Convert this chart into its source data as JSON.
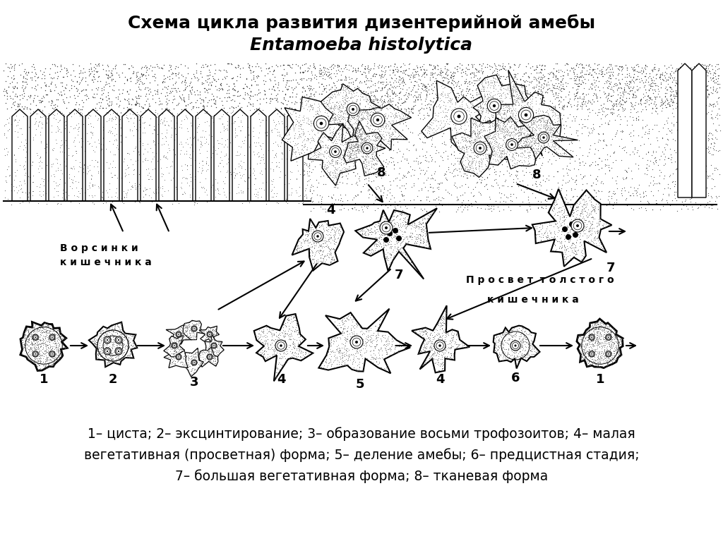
{
  "title_line1": "Схема цикла развития дизентерийной амебы",
  "title_line2": "Entamoeba histolytica",
  "caption_line1": "1– циста; 2– эксцинтирование; 3– образование восьми трофозоитов; 4– малая",
  "caption_line2": "вегетативная (просветная) форма; 5– деление амебы; 6– предцистная стадия;",
  "caption_line3": "7– большая вегетативная форма; 8– тканевая форма",
  "label_vorsiny_line1": "В о р с и н к и",
  "label_vorsiny_line2": "к и ш е ч н и к а",
  "label_просвет_line1": "П р о с в е т  т о л с т о г о",
  "label_просвет_line2": "к и ш е ч н и к а",
  "bg_color": "#ffffff",
  "line_color": "#000000",
  "tissue_stipple_color": "#444444",
  "villi_fill": "#cccccc",
  "cell_stipple_color": "#666666"
}
